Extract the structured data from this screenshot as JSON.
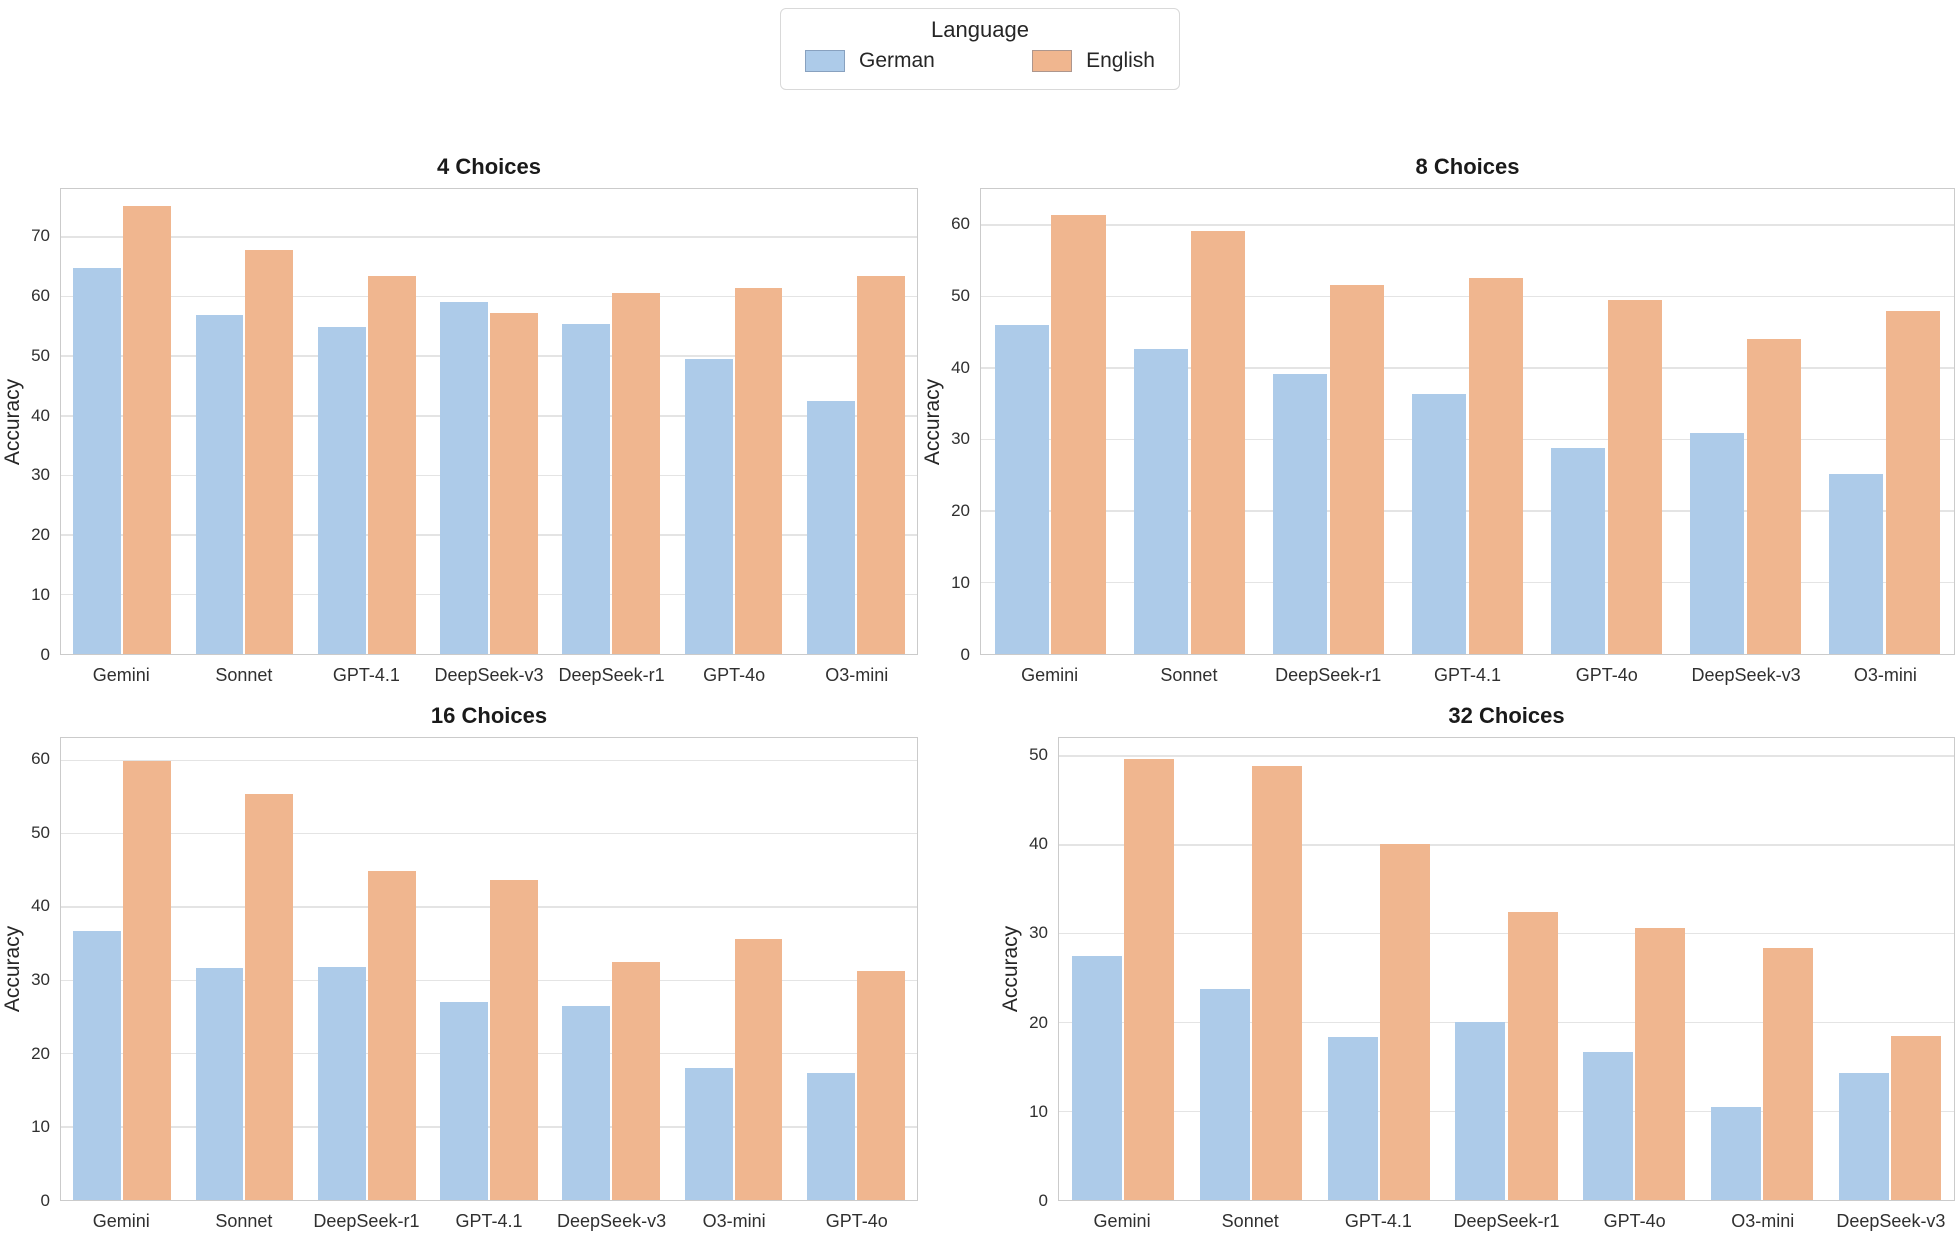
{
  "legend": {
    "title": "Language",
    "items": [
      {
        "label": "German",
        "color": "#adcbe9"
      },
      {
        "label": "English",
        "color": "#f0b68f"
      }
    ]
  },
  "chart_data": [
    {
      "type": "bar",
      "title": "4 Choices",
      "ylabel": "Accuracy",
      "xlabel": "",
      "categories": [
        "Gemini",
        "Sonnet",
        "GPT-4.1",
        "DeepSeek-v3",
        "DeepSeek-r1",
        "GPT-4o",
        "O3-mini"
      ],
      "series": [
        {
          "name": "German",
          "values": [
            64.7,
            56.8,
            54.8,
            59.1,
            55.4,
            49.5,
            42.4
          ]
        },
        {
          "name": "English",
          "values": [
            75.2,
            67.8,
            63.4,
            57.2,
            60.6,
            61.4,
            63.4
          ]
        }
      ],
      "yticks": [
        0,
        10,
        20,
        30,
        40,
        50,
        60,
        70
      ],
      "ylim": [
        0,
        78
      ],
      "grid": true
    },
    {
      "type": "bar",
      "title": "8 Choices",
      "ylabel": "Accuracy",
      "xlabel": "",
      "categories": [
        "Gemini",
        "Sonnet",
        "DeepSeek-r1",
        "GPT-4.1",
        "GPT-4o",
        "DeepSeek-v3",
        "O3-mini"
      ],
      "series": [
        {
          "name": "German",
          "values": [
            46.0,
            42.7,
            39.2,
            36.3,
            28.8,
            30.9,
            25.1
          ]
        },
        {
          "name": "English",
          "values": [
            61.4,
            59.1,
            51.6,
            52.5,
            49.5,
            44.0,
            48.0
          ]
        }
      ],
      "yticks": [
        0,
        10,
        20,
        30,
        40,
        50,
        60
      ],
      "ylim": [
        0,
        65
      ],
      "grid": true
    },
    {
      "type": "bar",
      "title": "16 Choices",
      "ylabel": "Accuracy",
      "xlabel": "",
      "categories": [
        "Gemini",
        "Sonnet",
        "DeepSeek-r1",
        "GPT-4.1",
        "DeepSeek-v3",
        "O3-mini",
        "GPT-4o"
      ],
      "series": [
        {
          "name": "German",
          "values": [
            36.7,
            31.7,
            31.8,
            27.0,
            26.5,
            18.0,
            17.3
          ]
        },
        {
          "name": "English",
          "values": [
            59.9,
            55.4,
            44.8,
            43.7,
            32.4,
            35.6,
            31.2
          ]
        }
      ],
      "yticks": [
        0,
        10,
        20,
        30,
        40,
        50,
        60
      ],
      "ylim": [
        0,
        63
      ],
      "grid": true
    },
    {
      "type": "bar",
      "title": "32 Choices",
      "ylabel": "Accuracy",
      "xlabel": "",
      "categories": [
        "Gemini",
        "Sonnet",
        "GPT-4.1",
        "DeepSeek-r1",
        "GPT-4o",
        "O3-mini",
        "DeepSeek-v3"
      ],
      "series": [
        {
          "name": "German",
          "values": [
            27.5,
            23.8,
            18.4,
            20.0,
            16.7,
            10.5,
            14.3
          ]
        },
        {
          "name": "English",
          "values": [
            49.6,
            48.8,
            40.1,
            32.4,
            30.6,
            28.4,
            18.5
          ]
        }
      ],
      "yticks": [
        0,
        10,
        20,
        30,
        40,
        50
      ],
      "ylim": [
        0,
        52
      ],
      "grid": true
    }
  ]
}
